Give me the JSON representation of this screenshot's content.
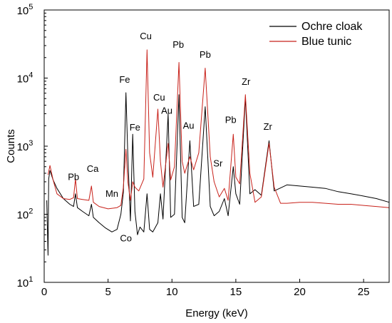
{
  "chart_data": {
    "type": "line",
    "xlabel": "Energy (keV)",
    "ylabel": "Counts",
    "xlim": [
      0,
      27
    ],
    "ylim": [
      10,
      100000
    ],
    "yscale": "log",
    "grid": false,
    "legend_position": "top-right",
    "x_ticks": [
      0,
      5,
      10,
      15,
      20,
      25
    ],
    "x_tick_labels": [
      "0",
      "5",
      "10",
      "15",
      "20",
      "25"
    ],
    "y_ticks": [
      10,
      100,
      1000,
      10000,
      100000
    ],
    "y_tick_labels": [
      {
        "base": "10",
        "exp": "1"
      },
      {
        "base": "10",
        "exp": "2"
      },
      {
        "base": "10",
        "exp": "3"
      },
      {
        "base": "10",
        "exp": "4"
      },
      {
        "base": "10",
        "exp": "5"
      }
    ],
    "series": [
      {
        "name": "Ochre cloak",
        "color": "#000000",
        "points": [
          [
            0.2,
            160
          ],
          [
            0.3,
            25
          ],
          [
            0.35,
            330
          ],
          [
            0.45,
            440
          ],
          [
            0.7,
            320
          ],
          [
            1.0,
            240
          ],
          [
            1.5,
            170
          ],
          [
            2.0,
            140
          ],
          [
            2.3,
            130
          ],
          [
            2.45,
            200
          ],
          [
            2.6,
            125
          ],
          [
            3.0,
            110
          ],
          [
            3.5,
            95
          ],
          [
            3.7,
            140
          ],
          [
            3.85,
            90
          ],
          [
            4.3,
            75
          ],
          [
            4.8,
            63
          ],
          [
            5.3,
            55
          ],
          [
            5.7,
            60
          ],
          [
            6.0,
            100
          ],
          [
            6.2,
            210
          ],
          [
            6.4,
            6100
          ],
          [
            6.55,
            700
          ],
          [
            6.75,
            80
          ],
          [
            6.93,
            1500
          ],
          [
            7.1,
            110
          ],
          [
            7.3,
            50
          ],
          [
            7.5,
            65
          ],
          [
            7.8,
            55
          ],
          [
            8.05,
            200
          ],
          [
            8.25,
            60
          ],
          [
            8.5,
            55
          ],
          [
            8.9,
            75
          ],
          [
            9.1,
            200
          ],
          [
            9.3,
            85
          ],
          [
            9.7,
            3000
          ],
          [
            9.9,
            90
          ],
          [
            10.2,
            100
          ],
          [
            10.55,
            5700
          ],
          [
            10.8,
            90
          ],
          [
            11.0,
            75
          ],
          [
            11.4,
            1200
          ],
          [
            11.7,
            130
          ],
          [
            12.1,
            140
          ],
          [
            12.6,
            3800
          ],
          [
            13.0,
            130
          ],
          [
            13.3,
            95
          ],
          [
            13.7,
            110
          ],
          [
            14.1,
            170
          ],
          [
            14.4,
            95
          ],
          [
            14.8,
            500
          ],
          [
            15.0,
            200
          ],
          [
            15.3,
            140
          ],
          [
            15.75,
            5200
          ],
          [
            16.1,
            200
          ],
          [
            16.5,
            230
          ],
          [
            17.0,
            190
          ],
          [
            17.6,
            1200
          ],
          [
            18.0,
            220
          ],
          [
            19.0,
            270
          ],
          [
            20.0,
            260
          ],
          [
            21.0,
            250
          ],
          [
            22.0,
            240
          ],
          [
            23.0,
            215
          ],
          [
            24.0,
            200
          ],
          [
            25.0,
            185
          ],
          [
            26.0,
            170
          ],
          [
            27.0,
            150
          ]
        ]
      },
      {
        "name": "Blue tunic",
        "color": "#c8221b",
        "points": [
          [
            0.3,
            380
          ],
          [
            0.45,
            520
          ],
          [
            0.7,
            320
          ],
          [
            1.0,
            200
          ],
          [
            1.5,
            170
          ],
          [
            2.0,
            165
          ],
          [
            2.3,
            175
          ],
          [
            2.45,
            330
          ],
          [
            2.6,
            170
          ],
          [
            3.0,
            165
          ],
          [
            3.5,
            160
          ],
          [
            3.7,
            260
          ],
          [
            3.85,
            150
          ],
          [
            4.3,
            130
          ],
          [
            5.0,
            120
          ],
          [
            5.7,
            125
          ],
          [
            6.0,
            135
          ],
          [
            6.2,
            250
          ],
          [
            6.4,
            900
          ],
          [
            6.55,
            300
          ],
          [
            6.75,
            160
          ],
          [
            6.93,
            300
          ],
          [
            7.1,
            250
          ],
          [
            7.4,
            220
          ],
          [
            7.8,
            330
          ],
          [
            8.05,
            26000
          ],
          [
            8.25,
            800
          ],
          [
            8.5,
            350
          ],
          [
            8.9,
            3500
          ],
          [
            9.1,
            600
          ],
          [
            9.3,
            250
          ],
          [
            9.7,
            1100
          ],
          [
            9.9,
            320
          ],
          [
            10.2,
            500
          ],
          [
            10.55,
            17000
          ],
          [
            10.8,
            600
          ],
          [
            11.0,
            400
          ],
          [
            11.4,
            700
          ],
          [
            11.7,
            450
          ],
          [
            12.1,
            800
          ],
          [
            12.6,
            14000
          ],
          [
            13.0,
            700
          ],
          [
            13.3,
            300
          ],
          [
            13.7,
            180
          ],
          [
            14.1,
            240
          ],
          [
            14.4,
            160
          ],
          [
            14.8,
            1500
          ],
          [
            15.0,
            350
          ],
          [
            15.3,
            280
          ],
          [
            15.75,
            5700
          ],
          [
            16.1,
            400
          ],
          [
            16.5,
            150
          ],
          [
            17.0,
            180
          ],
          [
            17.6,
            1100
          ],
          [
            18.0,
            250
          ],
          [
            18.5,
            145
          ],
          [
            19.0,
            145
          ],
          [
            20.0,
            150
          ],
          [
            21.0,
            150
          ],
          [
            22.0,
            145
          ],
          [
            23.0,
            140
          ],
          [
            24.0,
            140
          ],
          [
            25.0,
            135
          ],
          [
            26.0,
            130
          ],
          [
            27.0,
            125
          ]
        ]
      }
    ],
    "annotations": [
      {
        "text": "Pb",
        "x": 2.3,
        "y": 320
      },
      {
        "text": "Ca",
        "x": 3.8,
        "y": 420
      },
      {
        "text": "Mn",
        "x": 5.3,
        "y": 180
      },
      {
        "text": "Co",
        "x": 6.4,
        "y": 40
      },
      {
        "text": "Fe",
        "x": 6.3,
        "y": 8500
      },
      {
        "text": "Fe",
        "x": 7.1,
        "y": 1700
      },
      {
        "text": "Cu",
        "x": 7.95,
        "y": 37000
      },
      {
        "text": "Cu",
        "x": 9.0,
        "y": 4700
      },
      {
        "text": "Au",
        "x": 9.6,
        "y": 3000
      },
      {
        "text": "Au",
        "x": 11.3,
        "y": 1800
      },
      {
        "text": "Pb",
        "x": 10.5,
        "y": 28000
      },
      {
        "text": "Pb",
        "x": 12.6,
        "y": 20000
      },
      {
        "text": "Sr",
        "x": 13.6,
        "y": 500
      },
      {
        "text": "Pb",
        "x": 14.6,
        "y": 2200
      },
      {
        "text": "Zr",
        "x": 15.8,
        "y": 8000
      },
      {
        "text": "Zr",
        "x": 17.5,
        "y": 1750
      }
    ]
  }
}
